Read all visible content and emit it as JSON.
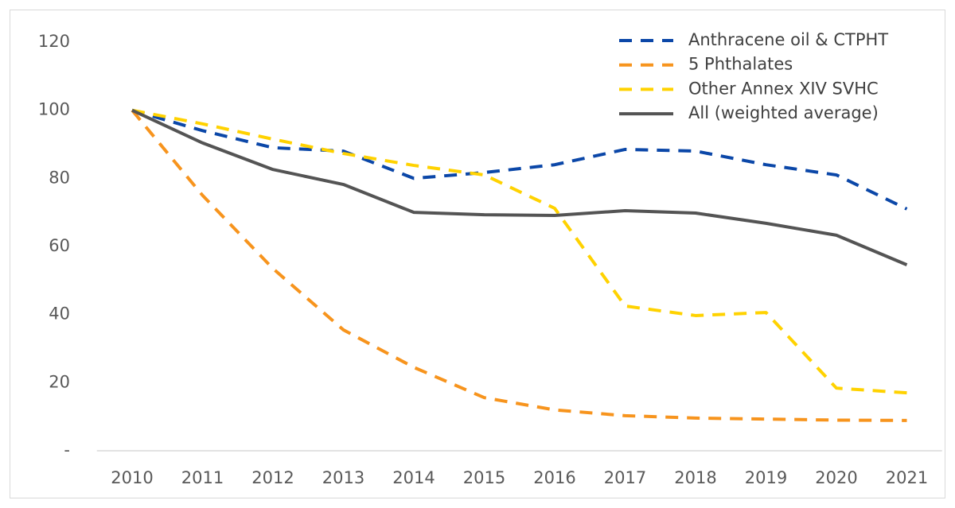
{
  "chart_data": {
    "type": "line",
    "categories": [
      "2010",
      "2011",
      "2012",
      "2013",
      "2014",
      "2015",
      "2016",
      "2017",
      "2018",
      "2019",
      "2020",
      "2021"
    ],
    "series": [
      {
        "name": "Anthracene oil & CTPHT",
        "color": "#0b47a8",
        "dashed": true,
        "values": [
          100,
          94,
          89,
          88,
          80,
          81.7,
          84,
          88.5,
          88,
          84,
          81,
          71
        ]
      },
      {
        "name": "5 Phthalates",
        "color": "#f7941d",
        "dashed": true,
        "values": [
          100,
          75,
          53.5,
          35.5,
          24.5,
          15.6,
          12,
          10.3,
          9.6,
          9.3,
          9,
          8.9
        ]
      },
      {
        "name": "Other Annex XIV SVHC",
        "color": "#ffd200",
        "dashed": true,
        "values": [
          100,
          96,
          91.5,
          87.3,
          83.8,
          81,
          71.2,
          42.5,
          39.7,
          40.6,
          18.4,
          17
        ]
      },
      {
        "name": "All (weighted average)",
        "color": "#545454",
        "dashed": false,
        "values": [
          100,
          90.4,
          82.6,
          78.2,
          70,
          69.3,
          69.1,
          70.5,
          69.8,
          66.8,
          63.3,
          54.6
        ]
      }
    ],
    "ylim": [
      0,
      120
    ],
    "yticks": [
      {
        "value": 0,
        "label": "-"
      },
      20,
      40,
      60,
      80,
      100,
      120
    ],
    "grid": false,
    "legend": "upper right"
  }
}
